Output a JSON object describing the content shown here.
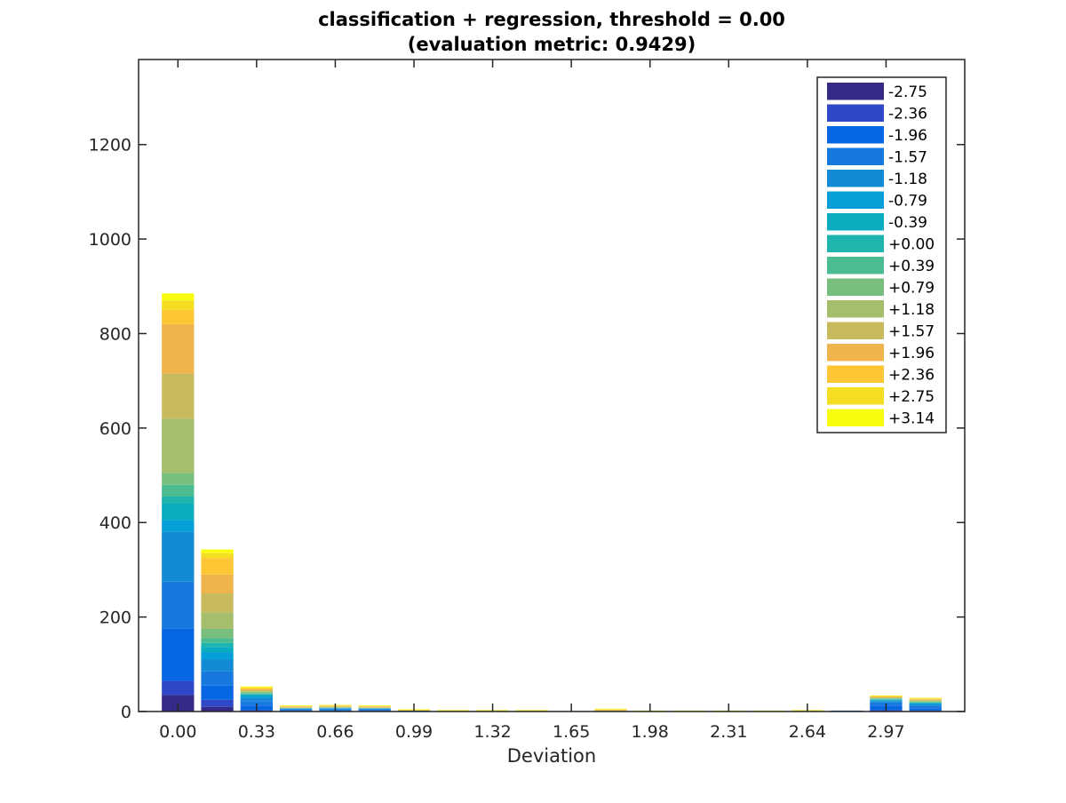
{
  "chart_data": {
    "type": "bar",
    "stacked": true,
    "title": "classification + regression, threshold = 0.00",
    "subtitle": "(evaluation metric: 0.9429)",
    "xlabel": "Deviation",
    "ylabel": "",
    "ylim": [
      0,
      1380
    ],
    "yticks": [
      0,
      200,
      400,
      600,
      800,
      1000,
      1200
    ],
    "xtick_labels": [
      "0.00",
      "0.33",
      "0.66",
      "0.99",
      "1.32",
      "1.65",
      "1.98",
      "2.31",
      "2.64",
      "2.97"
    ],
    "categories": [
      0.0,
      0.165,
      0.33,
      0.495,
      0.66,
      0.825,
      0.99,
      1.155,
      1.32,
      1.485,
      1.65,
      1.815,
      1.98,
      2.145,
      2.31,
      2.475,
      2.64,
      2.805,
      2.97,
      3.135
    ],
    "legend_position": "top-right",
    "grid": false,
    "series": [
      {
        "name": "-2.75",
        "color": "#352a87",
        "values": [
          35,
          10,
          1,
          0,
          0,
          0,
          0,
          0,
          0,
          0,
          0,
          0,
          0,
          0,
          0,
          0,
          0,
          0,
          1,
          1
        ]
      },
      {
        "name": "-2.36",
        "color": "#2f48c8",
        "values": [
          30,
          15,
          2,
          1,
          1,
          1,
          0,
          0,
          0,
          0,
          0,
          0,
          0,
          0,
          0,
          0,
          0,
          0,
          2,
          1
        ]
      },
      {
        "name": "-1.96",
        "color": "#0567e1",
        "values": [
          110,
          30,
          9,
          2,
          2,
          2,
          1,
          0,
          0,
          0,
          0,
          0,
          0,
          0,
          0,
          0,
          0,
          1,
          9,
          5
        ]
      },
      {
        "name": "-1.57",
        "color": "#1779de",
        "values": [
          100,
          30,
          10,
          2,
          2,
          2,
          1,
          0,
          0,
          0,
          1,
          0,
          0,
          0,
          0,
          0,
          0,
          1,
          7,
          5
        ]
      },
      {
        "name": "-1.18",
        "color": "#138ad5",
        "values": [
          105,
          25,
          7,
          1,
          1,
          1,
          0,
          0,
          0,
          0,
          0,
          0,
          0,
          0,
          0,
          0,
          0,
          0,
          3,
          3
        ]
      },
      {
        "name": "-0.79",
        "color": "#079fd7",
        "values": [
          25,
          15,
          4,
          1,
          1,
          1,
          0,
          0,
          0,
          0,
          0,
          0,
          0,
          0,
          0,
          0,
          0,
          0,
          2,
          2
        ]
      },
      {
        "name": "-0.39",
        "color": "#0aadc0",
        "values": [
          35,
          12,
          3,
          0,
          1,
          0,
          0,
          0,
          0,
          0,
          0,
          0,
          0,
          0,
          0,
          0,
          0,
          0,
          1,
          1
        ]
      },
      {
        "name": "+0.00",
        "color": "#1fb4ae",
        "values": [
          15,
          8,
          1,
          0,
          0,
          0,
          0,
          0,
          0,
          0,
          0,
          0,
          0,
          0,
          0,
          0,
          0,
          0,
          1,
          1
        ]
      },
      {
        "name": "+0.39",
        "color": "#4bbc92",
        "values": [
          25,
          10,
          2,
          0,
          0,
          0,
          0,
          0,
          0,
          0,
          0,
          0,
          0,
          0,
          0,
          0,
          0,
          0,
          1,
          1
        ]
      },
      {
        "name": "+0.79",
        "color": "#78bf7d",
        "values": [
          25,
          20,
          2,
          0,
          0,
          0,
          0,
          0,
          0,
          0,
          0,
          1,
          0,
          0,
          0,
          0,
          0,
          0,
          1,
          1
        ]
      },
      {
        "name": "+1.18",
        "color": "#a5be6b",
        "values": [
          115,
          35,
          2,
          1,
          1,
          1,
          0,
          0,
          0,
          0,
          0,
          0,
          0,
          0,
          0,
          0,
          0,
          0,
          1,
          2
        ]
      },
      {
        "name": "+1.57",
        "color": "#c8bb5e",
        "values": [
          95,
          40,
          2,
          1,
          1,
          1,
          0,
          0,
          0,
          0,
          0,
          1,
          0,
          0,
          0,
          0,
          0,
          0,
          1,
          2
        ]
      },
      {
        "name": "+1.96",
        "color": "#f0b44d",
        "values": [
          105,
          40,
          2,
          1,
          1,
          1,
          0,
          0,
          0,
          0,
          0,
          1,
          0,
          0,
          0,
          0,
          0,
          0,
          1,
          1
        ]
      },
      {
        "name": "+2.36",
        "color": "#fec635",
        "values": [
          30,
          35,
          2,
          1,
          1,
          1,
          1,
          1,
          1,
          1,
          0,
          1,
          0,
          0,
          0,
          0,
          1,
          0,
          1,
          1
        ]
      },
      {
        "name": "+2.75",
        "color": "#f5de22",
        "values": [
          20,
          10,
          2,
          1,
          1,
          1,
          1,
          1,
          1,
          1,
          0,
          1,
          1,
          1,
          1,
          1,
          1,
          0,
          1,
          1
        ]
      },
      {
        "name": "+3.14",
        "color": "#f9fb0e",
        "values": [
          15,
          8,
          2,
          1,
          1,
          1,
          1,
          1,
          1,
          1,
          0,
          1,
          1,
          1,
          1,
          1,
          1,
          0,
          1,
          1
        ]
      }
    ]
  }
}
